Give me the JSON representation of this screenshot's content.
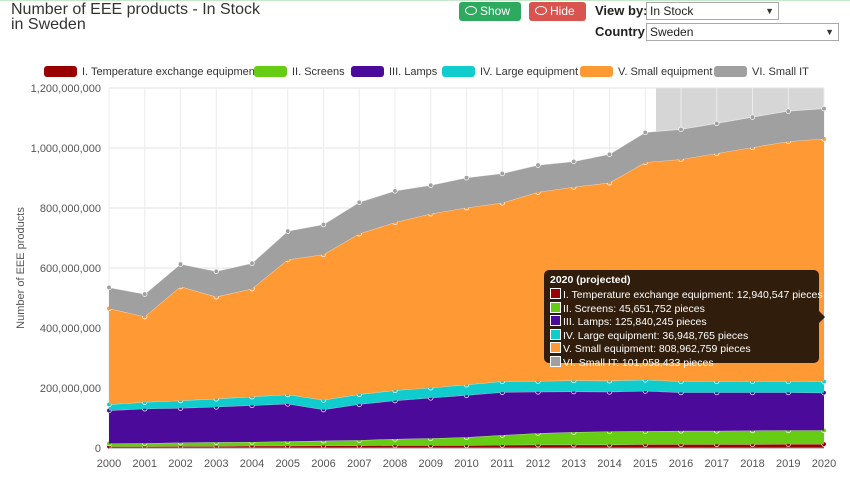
{
  "header": {
    "title_line1": "Number of EEE products - In Stock",
    "title_line2": "in Sweden",
    "show_all_label": "Show all",
    "hide_all_label": "Hide all",
    "view_by_label": "View by:",
    "view_by_value": "In Stock",
    "country_label": "Country:",
    "country_value": "Sweden"
  },
  "icons": {
    "show": "eye-icon",
    "hide": "eye-slash-icon",
    "dropdown": "chevron-down-icon"
  },
  "colors": {
    "temperature": "#990000",
    "screens": "#66cc14",
    "lamps": "#4b0a99",
    "large": "#11cccc",
    "small": "#ff9933",
    "smallit": "#a0a0a0",
    "projection_band": "#d6d6d6"
  },
  "chart_data": {
    "type": "area",
    "stacked": true,
    "ylabel": "Number of EEE products",
    "ylim": [
      0,
      1200000000
    ],
    "yticks": [
      "0",
      "200,000,000",
      "400,000,000",
      "600,000,000",
      "800,000,000",
      "1,000,000,000",
      "1,200,000,000"
    ],
    "x": [
      "2000",
      "2001",
      "2002",
      "2003",
      "2004",
      "2005",
      "2006",
      "2007",
      "2008",
      "2009",
      "2010",
      "2011",
      "2012",
      "2013",
      "2014",
      "2015",
      "2016",
      "2017",
      "2018",
      "2019",
      "2020"
    ],
    "projected_from": 2015.3,
    "grid": true,
    "legend_position": "top",
    "series": [
      {
        "name": "I. Temperature exchange equipment",
        "key": "temperature",
        "values": [
          5000000,
          5000000,
          6000000,
          6000000,
          7000000,
          7000000,
          8000000,
          8000000,
          9000000,
          9000000,
          9000000,
          10000000,
          11000000,
          11000000,
          11000000,
          12000000,
          12000000,
          12000000,
          12500000,
          12900000,
          12940547
        ]
      },
      {
        "name": "II. Screens",
        "key": "screens",
        "values": [
          10000000,
          11000000,
          12000000,
          13000000,
          13000000,
          15000000,
          16000000,
          18000000,
          21000000,
          23000000,
          27000000,
          33000000,
          38000000,
          42000000,
          44000000,
          44000000,
          45000000,
          45000000,
          45500000,
          45600000,
          45651752
        ]
      },
      {
        "name": "III. Lamps",
        "key": "lamps",
        "values": [
          110000000,
          115000000,
          115000000,
          118000000,
          122000000,
          125000000,
          104000000,
          120000000,
          128000000,
          135000000,
          140000000,
          143000000,
          138000000,
          135000000,
          132000000,
          134000000,
          128000000,
          128000000,
          127000000,
          126500000,
          125840245
        ]
      },
      {
        "name": "IV. Large equipment",
        "key": "large",
        "values": [
          20000000,
          22000000,
          25000000,
          27000000,
          29000000,
          31000000,
          32000000,
          33000000,
          34000000,
          34000000,
          35000000,
          36000000,
          36000000,
          37000000,
          37000000,
          37000000,
          37000000,
          37000000,
          37000000,
          37000000,
          36948765
        ]
      },
      {
        "name": "V. Small equipment",
        "key": "small",
        "values": [
          320000000,
          285000000,
          380000000,
          340000000,
          360000000,
          450000000,
          485000000,
          535000000,
          560000000,
          580000000,
          590000000,
          595000000,
          630000000,
          645000000,
          660000000,
          725000000,
          740000000,
          760000000,
          780000000,
          800000000,
          808962759
        ]
      },
      {
        "name": "VI. Small IT",
        "key": "smallit",
        "values": [
          70000000,
          75000000,
          75000000,
          85000000,
          85000000,
          95000000,
          100000000,
          105000000,
          105000000,
          95000000,
          100000000,
          98000000,
          90000000,
          85000000,
          95000000,
          100000000,
          100000000,
          100000000,
          101000000,
          101000000,
          101058433
        ]
      }
    ]
  },
  "tooltip": {
    "title": "2020 (projected)",
    "rows": [
      {
        "key": "temperature",
        "text": "I. Temperature exchange equipment: 12,940,547 pieces"
      },
      {
        "key": "screens",
        "text": "II. Screens: 45,651,752 pieces"
      },
      {
        "key": "lamps",
        "text": "III. Lamps: 125,840,245 pieces"
      },
      {
        "key": "large",
        "text": "IV. Large equipment: 36,948,765 pieces"
      },
      {
        "key": "small",
        "text": "V. Small equipment: 808,962,759 pieces"
      },
      {
        "key": "smallit",
        "text": "VI. Small IT: 101,058,433 pieces"
      }
    ]
  }
}
